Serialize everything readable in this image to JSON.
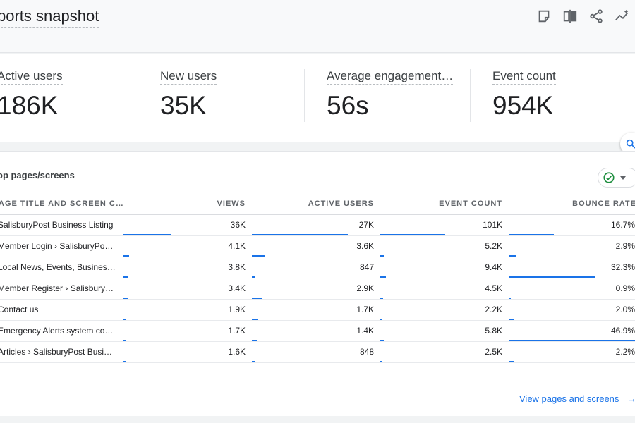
{
  "header": {
    "title": "ports snapshot"
  },
  "metrics": [
    {
      "label": "Active users",
      "value": "186K"
    },
    {
      "label": "New users",
      "value": "35K"
    },
    {
      "label": "Average engagement…",
      "value": "56s"
    },
    {
      "label": "Event count",
      "value": "954K"
    }
  ],
  "table": {
    "title": "op pages/screens",
    "columns": [
      "AGE TITLE AND SCREEN C…",
      "VIEWS",
      "ACTIVE USERS",
      "EVENT COUNT",
      "BOUNCE RATE"
    ],
    "rows": [
      {
        "name": "SalisburyPost Business Listing",
        "views": "36K",
        "active_users": "27K",
        "event_count": "101K",
        "bounce_rate": "16.7%",
        "views_frac": 1.0,
        "active_frac": 1.0,
        "event_frac": 1.0,
        "bounce_frac": 0.356
      },
      {
        "name": "Member Login › SalisburyPost…",
        "views": "4.1K",
        "active_users": "3.6K",
        "event_count": "5.2K",
        "bounce_rate": "2.9%",
        "views_frac": 0.114,
        "active_frac": 0.133,
        "event_frac": 0.051,
        "bounce_frac": 0.062
      },
      {
        "name": "Local News, Events, Business …",
        "views": "3.8K",
        "active_users": "847",
        "event_count": "9.4K",
        "bounce_rate": "32.3%",
        "views_frac": 0.106,
        "active_frac": 0.031,
        "event_frac": 0.093,
        "bounce_frac": 0.689
      },
      {
        "name": "Member Register › SalisburyP…",
        "views": "3.4K",
        "active_users": "2.9K",
        "event_count": "4.5K",
        "bounce_rate": "0.9%",
        "views_frac": 0.094,
        "active_frac": 0.107,
        "event_frac": 0.045,
        "bounce_frac": 0.019
      },
      {
        "name": "Contact us",
        "views": "1.9K",
        "active_users": "1.7K",
        "event_count": "2.2K",
        "bounce_rate": "2.0%",
        "views_frac": 0.053,
        "active_frac": 0.063,
        "event_frac": 0.022,
        "bounce_frac": 0.043
      },
      {
        "name": "Emergency Alerts system cost…",
        "views": "1.7K",
        "active_users": "1.4K",
        "event_count": "5.8K",
        "bounce_rate": "46.9%",
        "views_frac": 0.047,
        "active_frac": 0.052,
        "event_frac": 0.057,
        "bounce_frac": 1.0
      },
      {
        "name": "Articles › SalisburyPost Busin…",
        "views": "1.6K",
        "active_users": "848",
        "event_count": "2.5K",
        "bounce_rate": "2.2%",
        "views_frac": 0.044,
        "active_frac": 0.031,
        "event_frac": 0.025,
        "bounce_frac": 0.047
      }
    ],
    "link": "View pages and screens"
  },
  "icons": {
    "customize": "customize-icon",
    "compare": "compare-icon",
    "share": "share-icon",
    "insights": "insights-icon",
    "status": "check-circle-icon",
    "dropdown": "dropdown-icon",
    "arrow": "arrow-right-icon"
  },
  "colors": {
    "accent": "#1a73e8",
    "status_ok": "#1e8e3e"
  }
}
